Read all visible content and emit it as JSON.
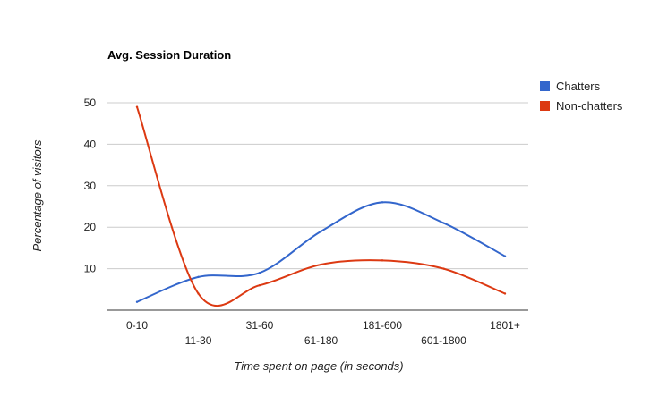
{
  "chart_data": {
    "type": "line",
    "title": "Avg. Session Duration",
    "xlabel": "Time spent on page (in seconds)",
    "ylabel": "Percentage of visitors",
    "categories": [
      "0-10",
      "11-30",
      "31-60",
      "61-180",
      "181-600",
      "601-1800",
      "1801+"
    ],
    "yticks": [
      10,
      20,
      30,
      40,
      50
    ],
    "ylim": [
      0,
      55
    ],
    "grid": true,
    "legend_position": "top-right",
    "smooth": true,
    "series": [
      {
        "name": "Chatters",
        "color": "#3366cc",
        "values": [
          2,
          8,
          9,
          19,
          26,
          21,
          13
        ]
      },
      {
        "name": "Non-chatters",
        "color": "#dc3912",
        "values": [
          49,
          4,
          6,
          11,
          12,
          10,
          4
        ]
      }
    ]
  }
}
